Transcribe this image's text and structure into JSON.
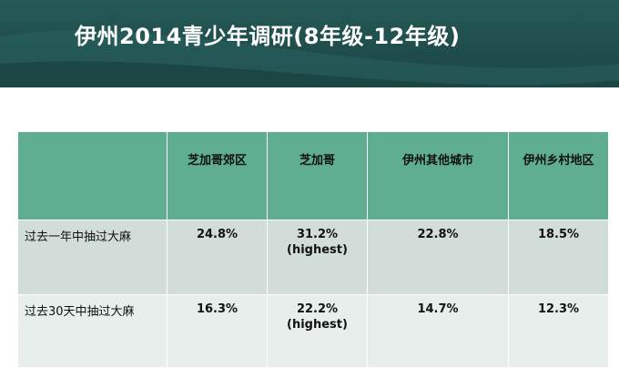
{
  "slide": {
    "title": "伊州2014青少年调研(8年级-12年级)"
  },
  "table": {
    "columns": [
      "",
      "芝加哥郊区",
      "芝加哥",
      "伊州其他城市",
      "伊州乡村地区"
    ],
    "rows": [
      {
        "label": "过去一年中抽过大麻",
        "values": [
          "24.8%",
          "31.2%",
          "22.8%",
          "18.5%"
        ],
        "notes": [
          "",
          "(highest)",
          "",
          ""
        ]
      },
      {
        "label": "过去30天中抽过大麻",
        "values": [
          "16.3%",
          "22.2%",
          "14.7%",
          "12.3%"
        ],
        "notes": [
          "",
          "(highest)",
          "",
          ""
        ]
      }
    ]
  },
  "colors": {
    "banner": "#1f4d4b",
    "header_fill": "#5fae91",
    "row1_fill": "#d2ddd9",
    "row2_fill": "#e8eeec"
  }
}
